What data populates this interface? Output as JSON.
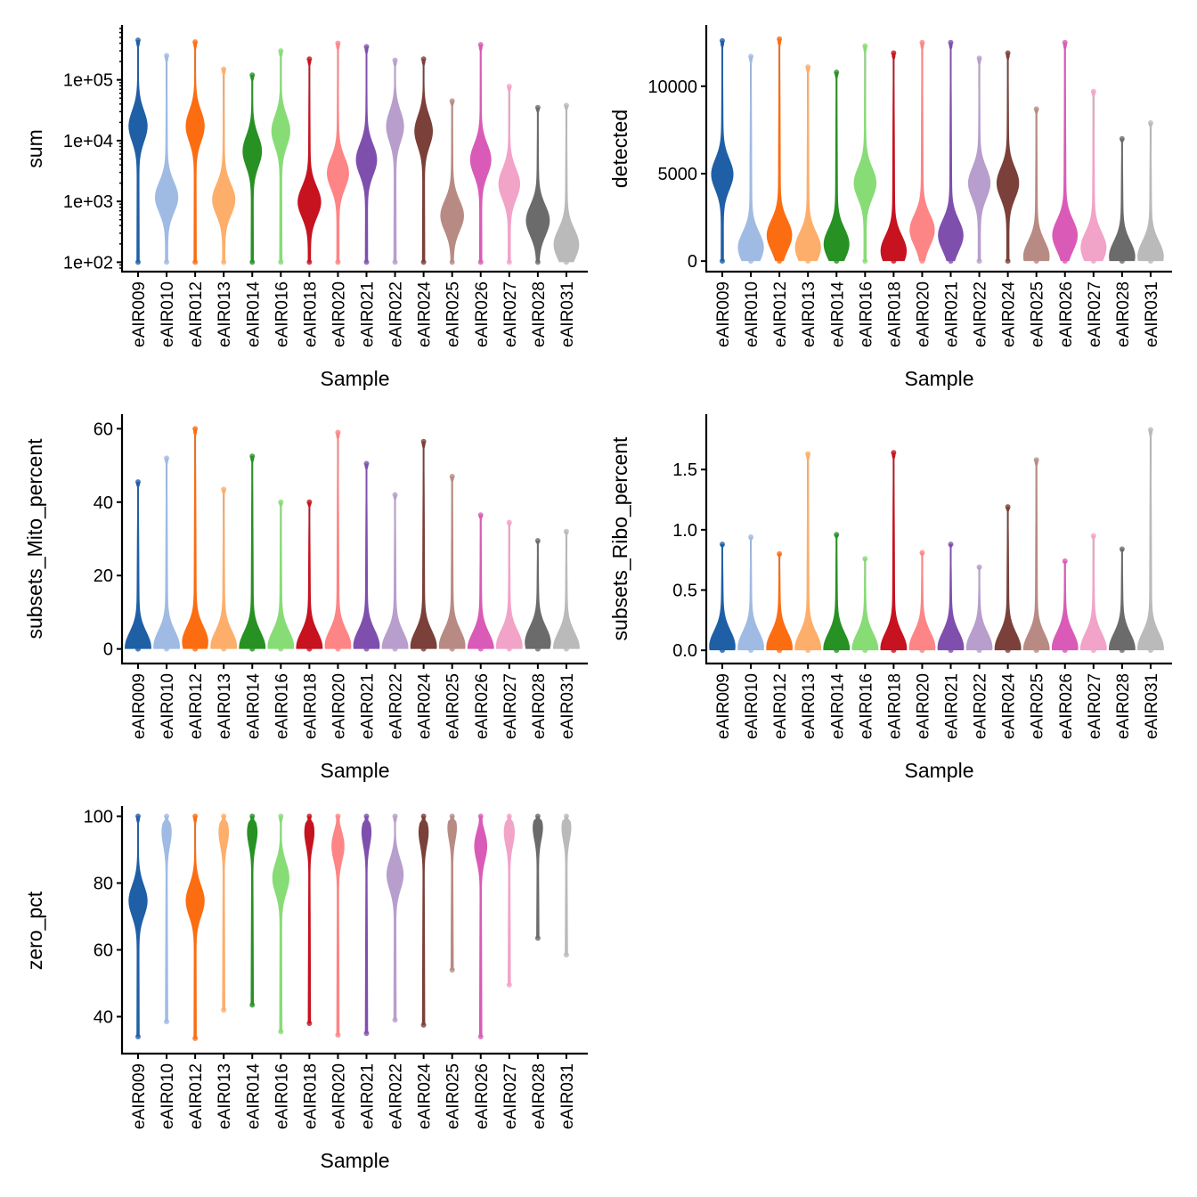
{
  "chart_data": [
    {
      "type": "violin",
      "ylabel": "sum",
      "xlabel": "Sample",
      "yscale": "log10",
      "ylim": [
        80,
        700000
      ],
      "yticks": [
        100,
        1000,
        10000,
        100000
      ],
      "ytick_labels": [
        "1e+02",
        "1e+03",
        "1e+04",
        "1e+05"
      ],
      "categories": [
        "eAIR009",
        "eAIR010",
        "eAIR012",
        "eAIR013",
        "eAIR014",
        "eAIR016",
        "eAIR018",
        "eAIR020",
        "eAIR021",
        "eAIR022",
        "eAIR024",
        "eAIR025",
        "eAIR026",
        "eAIR027",
        "eAIR028",
        "eAIR031"
      ],
      "min": [
        100,
        100,
        100,
        100,
        100,
        100,
        100,
        100,
        100,
        100,
        100,
        100,
        100,
        100,
        100,
        100
      ],
      "max": [
        450000,
        250000,
        420000,
        150000,
        120000,
        300000,
        220000,
        400000,
        350000,
        210000,
        220000,
        45000,
        380000,
        78000,
        35000,
        38000
      ],
      "mode": [
        18000,
        1200,
        18000,
        1100,
        7000,
        15000,
        1000,
        3000,
        5000,
        18000,
        15000,
        600,
        5000,
        2000,
        500,
        200
      ]
    },
    {
      "type": "violin",
      "ylabel": "detected",
      "xlabel": "Sample",
      "yscale": "linear",
      "ylim": [
        -400,
        13300
      ],
      "yticks": [
        0,
        5000,
        10000
      ],
      "ytick_labels": [
        "0",
        "5000",
        "10000"
      ],
      "categories": [
        "eAIR009",
        "eAIR010",
        "eAIR012",
        "eAIR013",
        "eAIR014",
        "eAIR016",
        "eAIR018",
        "eAIR020",
        "eAIR021",
        "eAIR022",
        "eAIR024",
        "eAIR025",
        "eAIR026",
        "eAIR027",
        "eAIR028",
        "eAIR031"
      ],
      "min": [
        0,
        0,
        0,
        0,
        0,
        0,
        0,
        0,
        0,
        0,
        0,
        0,
        0,
        0,
        0,
        0
      ],
      "max": [
        12600,
        11700,
        12700,
        11100,
        10800,
        12300,
        11900,
        12500,
        12500,
        11600,
        11900,
        8700,
        12500,
        9700,
        7000,
        7900
      ],
      "mode": [
        5000,
        800,
        1500,
        800,
        1000,
        4500,
        600,
        1800,
        1500,
        4500,
        4500,
        300,
        1500,
        800,
        300,
        300
      ]
    },
    {
      "type": "violin",
      "ylabel": "subsets_Mito_percent",
      "xlabel": "Sample",
      "yscale": "linear",
      "ylim": [
        -3,
        63
      ],
      "yticks": [
        0,
        20,
        40,
        60
      ],
      "ytick_labels": [
        "0",
        "20",
        "40",
        "60"
      ],
      "categories": [
        "eAIR009",
        "eAIR010",
        "eAIR012",
        "eAIR013",
        "eAIR014",
        "eAIR016",
        "eAIR018",
        "eAIR020",
        "eAIR021",
        "eAIR022",
        "eAIR024",
        "eAIR025",
        "eAIR026",
        "eAIR027",
        "eAIR028",
        "eAIR031"
      ],
      "min": [
        0,
        0,
        0,
        0,
        0,
        0,
        0,
        0,
        0,
        0,
        0,
        0,
        0,
        0,
        0,
        0
      ],
      "max": [
        45.5,
        52,
        60,
        43.5,
        52.5,
        40,
        40,
        59,
        50.5,
        42,
        56.5,
        47,
        36.5,
        34.5,
        29.5,
        32
      ],
      "mode": [
        0.5,
        0.8,
        2,
        0.8,
        0.5,
        0.8,
        0.5,
        1,
        1,
        0.5,
        0.8,
        1,
        0.3,
        1,
        2,
        0.5
      ]
    },
    {
      "type": "violin",
      "ylabel": "subsets_Ribo_percent",
      "xlabel": "Sample",
      "yscale": "linear",
      "ylim": [
        -0.08,
        1.93
      ],
      "yticks": [
        0,
        0.5,
        1,
        1.5
      ],
      "ytick_labels": [
        "0.0",
        "0.5",
        "1.0",
        "1.5"
      ],
      "categories": [
        "eAIR009",
        "eAIR010",
        "eAIR012",
        "eAIR013",
        "eAIR014",
        "eAIR016",
        "eAIR018",
        "eAIR020",
        "eAIR021",
        "eAIR022",
        "eAIR024",
        "eAIR025",
        "eAIR026",
        "eAIR027",
        "eAIR028",
        "eAIR031"
      ],
      "min": [
        0,
        0,
        0,
        0,
        0,
        0,
        0,
        0,
        0,
        0,
        0,
        0,
        0,
        0,
        0,
        0
      ],
      "max": [
        0.88,
        0.94,
        0.8,
        1.63,
        0.96,
        0.76,
        1.64,
        0.81,
        0.88,
        0.69,
        1.19,
        1.58,
        0.74,
        0.95,
        0.84,
        1.83
      ],
      "mode": [
        0.04,
        0.03,
        0.03,
        0.02,
        0.02,
        0.02,
        0.02,
        0.03,
        0.03,
        0.03,
        0.02,
        0.01,
        0.03,
        0.02,
        0.02,
        0.02
      ]
    },
    {
      "type": "violin",
      "ylabel": "zero_pct",
      "xlabel": "Sample",
      "yscale": "linear",
      "ylim": [
        30,
        102
      ],
      "yticks": [
        40,
        60,
        80,
        100
      ],
      "ytick_labels": [
        "40",
        "60",
        "80",
        "100"
      ],
      "categories": [
        "eAIR009",
        "eAIR010",
        "eAIR012",
        "eAIR013",
        "eAIR014",
        "eAIR016",
        "eAIR018",
        "eAIR020",
        "eAIR021",
        "eAIR022",
        "eAIR024",
        "eAIR025",
        "eAIR026",
        "eAIR027",
        "eAIR028",
        "eAIR031"
      ],
      "min": [
        34,
        38.5,
        33.5,
        42,
        43.5,
        35.5,
        38,
        34.5,
        35,
        39,
        37.5,
        54,
        34,
        49.5,
        63.5,
        58.5
      ],
      "max": [
        100,
        100,
        100,
        100,
        100,
        100,
        100,
        100,
        100,
        100,
        100,
        100,
        100,
        100,
        100,
        100
      ],
      "mode": [
        75,
        97,
        75,
        97,
        97,
        82,
        97,
        92,
        97,
        83,
        97,
        99,
        92,
        97,
        99,
        99
      ]
    }
  ],
  "colors": [
    "#1f5fa6",
    "#9fbbe3",
    "#fc6d12",
    "#fdae6b",
    "#279124",
    "#87dc76",
    "#c7121f",
    "#fd8585",
    "#7f4fae",
    "#b89ecc",
    "#7a4039",
    "#b78b83",
    "#d95bb7",
    "#f2a3c8",
    "#6b6b6b",
    "#bababa"
  ]
}
